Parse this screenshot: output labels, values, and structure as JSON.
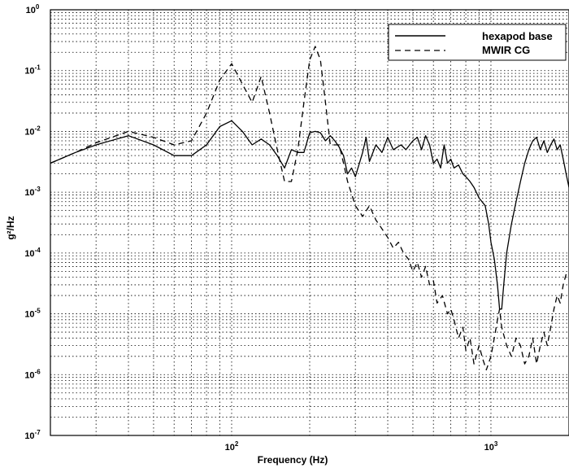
{
  "chart_data": {
    "type": "line",
    "title": "",
    "xlabel": "Frequency (Hz)",
    "ylabel": "g²/Hz",
    "xscale": "log",
    "yscale": "log",
    "xlim": [
      20,
      2000
    ],
    "ylim": [
      1e-07,
      1
    ],
    "grid": true,
    "legend_position": "top-right",
    "x_tick_labels": [
      {
        "value": 100,
        "base": "10",
        "exp": "2"
      },
      {
        "value": 1000,
        "base": "10",
        "exp": "3"
      }
    ],
    "y_tick_labels": [
      {
        "value": 1,
        "base": "10",
        "exp": "0"
      },
      {
        "value": 0.1,
        "base": "10",
        "exp": "-1"
      },
      {
        "value": 0.01,
        "base": "10",
        "exp": "-2"
      },
      {
        "value": 0.001,
        "base": "10",
        "exp": "-3"
      },
      {
        "value": 0.0001,
        "base": "10",
        "exp": "-4"
      },
      {
        "value": 1e-05,
        "base": "10",
        "exp": "-5"
      },
      {
        "value": 1e-06,
        "base": "10",
        "exp": "-6"
      },
      {
        "value": 1e-07,
        "base": "10",
        "exp": "-7"
      }
    ],
    "series": [
      {
        "name": "hexapod base",
        "style": "solid",
        "color": "#000000",
        "points": [
          [
            20,
            0.003
          ],
          [
            25,
            0.0045
          ],
          [
            30,
            0.006
          ],
          [
            40,
            0.0085
          ],
          [
            50,
            0.006
          ],
          [
            60,
            0.004
          ],
          [
            70,
            0.004
          ],
          [
            80,
            0.006
          ],
          [
            90,
            0.012
          ],
          [
            100,
            0.015
          ],
          [
            110,
            0.01
          ],
          [
            120,
            0.006
          ],
          [
            130,
            0.0075
          ],
          [
            140,
            0.006
          ],
          [
            150,
            0.004
          ],
          [
            160,
            0.0025
          ],
          [
            170,
            0.005
          ],
          [
            180,
            0.0045
          ],
          [
            190,
            0.0045
          ],
          [
            200,
            0.0095
          ],
          [
            210,
            0.01
          ],
          [
            220,
            0.0095
          ],
          [
            230,
            0.007
          ],
          [
            240,
            0.0085
          ],
          [
            250,
            0.007
          ],
          [
            260,
            0.0055
          ],
          [
            270,
            0.004
          ],
          [
            280,
            0.002
          ],
          [
            290,
            0.0025
          ],
          [
            300,
            0.0018
          ],
          [
            320,
            0.0045
          ],
          [
            330,
            0.008
          ],
          [
            340,
            0.0032
          ],
          [
            360,
            0.006
          ],
          [
            380,
            0.0045
          ],
          [
            400,
            0.008
          ],
          [
            420,
            0.005
          ],
          [
            450,
            0.006
          ],
          [
            470,
            0.005
          ],
          [
            500,
            0.007
          ],
          [
            520,
            0.008
          ],
          [
            540,
            0.005
          ],
          [
            560,
            0.0085
          ],
          [
            580,
            0.006
          ],
          [
            600,
            0.003
          ],
          [
            620,
            0.0035
          ],
          [
            640,
            0.0025
          ],
          [
            660,
            0.006
          ],
          [
            680,
            0.003
          ],
          [
            700,
            0.0035
          ],
          [
            720,
            0.0025
          ],
          [
            750,
            0.0028
          ],
          [
            780,
            0.002
          ],
          [
            800,
            0.0018
          ],
          [
            830,
            0.0015
          ],
          [
            860,
            0.0012
          ],
          [
            900,
            0.0008
          ],
          [
            950,
            0.0006
          ],
          [
            980,
            0.0003
          ],
          [
            1000,
            0.00015
          ],
          [
            1030,
            8e-05
          ],
          [
            1060,
            3e-05
          ],
          [
            1080,
            1.2e-05
          ],
          [
            1100,
            1.2e-05
          ],
          [
            1120,
            3e-05
          ],
          [
            1150,
            0.0001
          ],
          [
            1200,
            0.0003
          ],
          [
            1250,
            0.0007
          ],
          [
            1300,
            0.0015
          ],
          [
            1350,
            0.003
          ],
          [
            1400,
            0.005
          ],
          [
            1450,
            0.007
          ],
          [
            1500,
            0.008
          ],
          [
            1550,
            0.005
          ],
          [
            1600,
            0.007
          ],
          [
            1650,
            0.0045
          ],
          [
            1700,
            0.006
          ],
          [
            1750,
            0.0075
          ],
          [
            1800,
            0.005
          ],
          [
            1850,
            0.006
          ],
          [
            1900,
            0.0035
          ],
          [
            1950,
            0.002
          ],
          [
            2000,
            0.0012
          ]
        ]
      },
      {
        "name": "MWIR CG",
        "style": "dashed",
        "color": "#000000",
        "points": [
          [
            20,
            0.003
          ],
          [
            25,
            0.0045
          ],
          [
            30,
            0.0065
          ],
          [
            40,
            0.01
          ],
          [
            50,
            0.008
          ],
          [
            60,
            0.006
          ],
          [
            70,
            0.007
          ],
          [
            80,
            0.02
          ],
          [
            90,
            0.07
          ],
          [
            100,
            0.13
          ],
          [
            110,
            0.06
          ],
          [
            120,
            0.03
          ],
          [
            130,
            0.08
          ],
          [
            140,
            0.02
          ],
          [
            150,
            0.005
          ],
          [
            160,
            0.0015
          ],
          [
            170,
            0.0015
          ],
          [
            180,
            0.005
          ],
          [
            190,
            0.03
          ],
          [
            200,
            0.15
          ],
          [
            210,
            0.25
          ],
          [
            220,
            0.15
          ],
          [
            230,
            0.03
          ],
          [
            240,
            0.006
          ],
          [
            250,
            0.006
          ],
          [
            260,
            0.006
          ],
          [
            270,
            0.003
          ],
          [
            280,
            0.0015
          ],
          [
            300,
            0.0006
          ],
          [
            320,
            0.0004
          ],
          [
            340,
            0.0006
          ],
          [
            360,
            0.00035
          ],
          [
            380,
            0.00025
          ],
          [
            400,
            0.00018
          ],
          [
            420,
            0.00012
          ],
          [
            440,
            0.00015
          ],
          [
            460,
            0.0001
          ],
          [
            480,
            8e-05
          ],
          [
            500,
            5e-05
          ],
          [
            520,
            7e-05
          ],
          [
            540,
            4e-05
          ],
          [
            560,
            6e-05
          ],
          [
            580,
            3e-05
          ],
          [
            600,
            3.5e-05
          ],
          [
            620,
            1.5e-05
          ],
          [
            650,
            2e-05
          ],
          [
            680,
            1e-05
          ],
          [
            700,
            1.2e-05
          ],
          [
            720,
            8e-06
          ],
          [
            750,
            4e-06
          ],
          [
            780,
            6e-06
          ],
          [
            800,
            2.5e-06
          ],
          [
            830,
            4e-06
          ],
          [
            860,
            1.5e-06
          ],
          [
            900,
            3e-06
          ],
          [
            930,
            1.8e-06
          ],
          [
            960,
            1.2e-06
          ],
          [
            1000,
            2e-06
          ],
          [
            1030,
            4e-06
          ],
          [
            1060,
            8e-06
          ],
          [
            1080,
            1.2e-05
          ],
          [
            1100,
            6e-06
          ],
          [
            1150,
            3e-06
          ],
          [
            1200,
            2e-06
          ],
          [
            1250,
            4e-06
          ],
          [
            1300,
            3e-06
          ],
          [
            1350,
            1.5e-06
          ],
          [
            1400,
            2e-06
          ],
          [
            1450,
            4e-06
          ],
          [
            1500,
            1.5e-06
          ],
          [
            1550,
            3e-06
          ],
          [
            1600,
            5e-06
          ],
          [
            1650,
            3e-06
          ],
          [
            1700,
            6e-06
          ],
          [
            1750,
            1.2e-05
          ],
          [
            1800,
            2e-05
          ],
          [
            1850,
            1.5e-05
          ],
          [
            1900,
            3e-05
          ],
          [
            1950,
            4.5e-05
          ],
          [
            2000,
            5e-05
          ]
        ]
      }
    ]
  }
}
